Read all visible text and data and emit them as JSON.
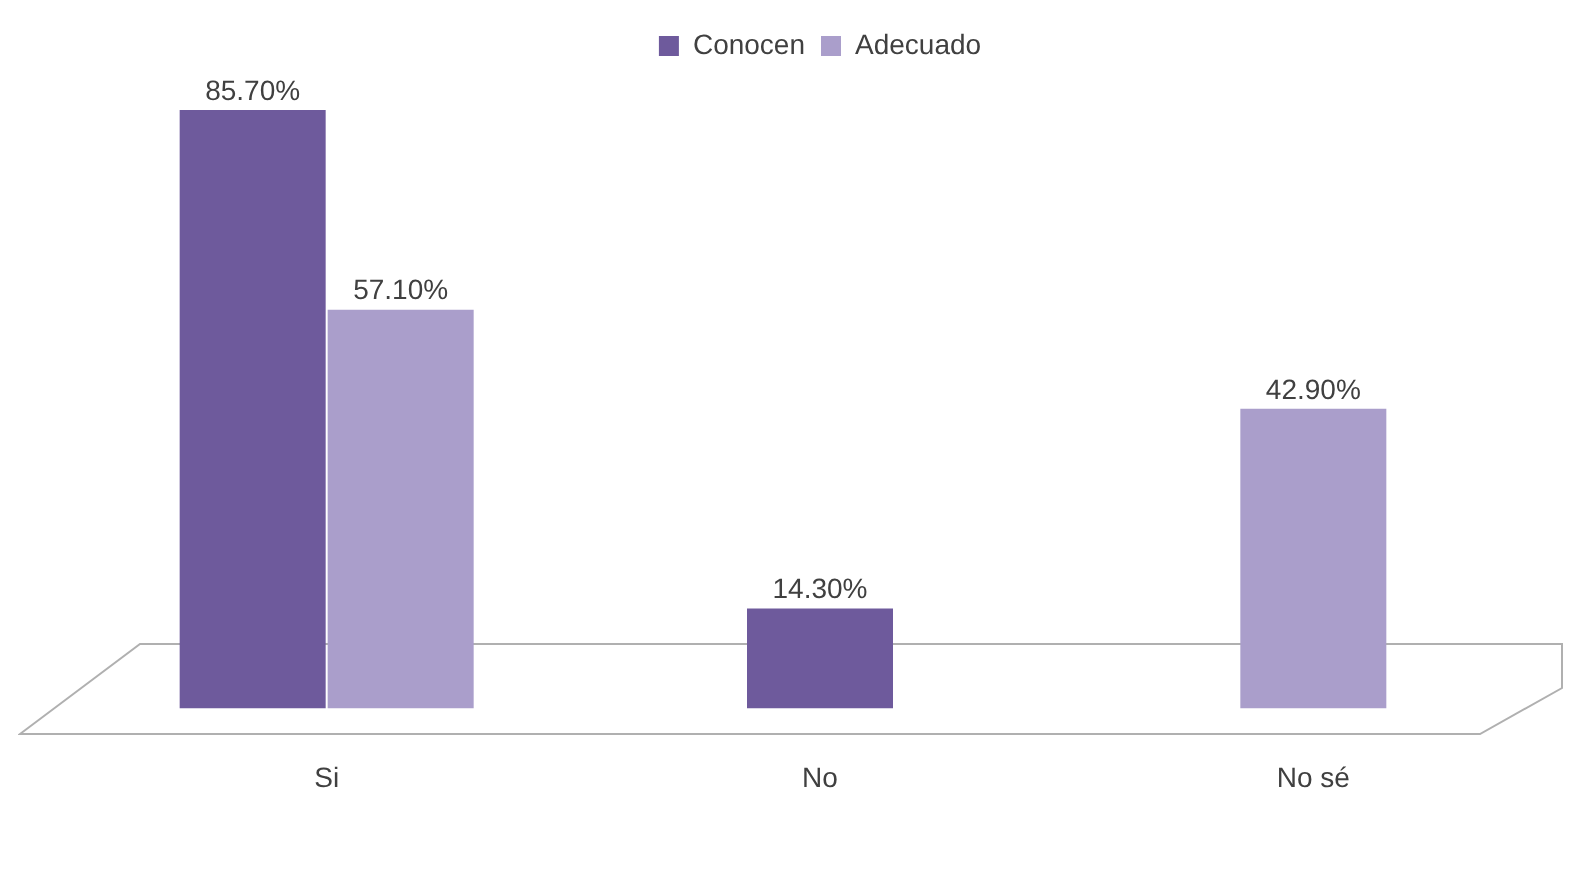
{
  "chart_data": {
    "type": "bar",
    "categories": [
      "Si",
      "No",
      "No sé"
    ],
    "series": [
      {
        "name": "Conocen",
        "color": "#6e5a9c",
        "values": [
          85.7,
          14.3,
          null
        ],
        "value_labels": [
          "85.70%",
          "14.30%",
          null
        ]
      },
      {
        "name": "Adecuado",
        "color": "#aa9ecb",
        "values": [
          57.1,
          null,
          42.9
        ],
        "value_labels": [
          "57.10%",
          null,
          "42.90%"
        ]
      }
    ],
    "legend": "top",
    "tick_labels": "x",
    "grid": false
  }
}
